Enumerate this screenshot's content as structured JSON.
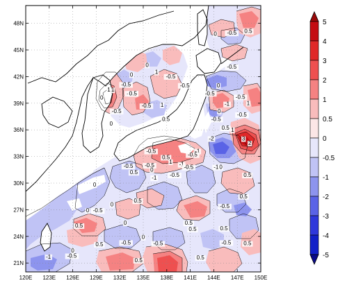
{
  "map": {
    "lon_ticks": [
      "120E",
      "123E",
      "126E",
      "129E",
      "132E",
      "135E",
      "138E",
      "141E",
      "144E",
      "147E",
      "150E"
    ],
    "lat_ticks": [
      "21N",
      "24N",
      "27N",
      "30N",
      "33N",
      "36N",
      "39N",
      "42N",
      "45N",
      "48N"
    ],
    "lon_range": [
      120,
      150
    ],
    "lat_range": [
      20,
      50
    ],
    "contour_labels": [
      {
        "text": "0.5",
        "lon": 148.4,
        "lat": 46.9
      },
      {
        "text": "-0.5",
        "lon": 146.3,
        "lat": 46.7
      },
      {
        "text": "0",
        "lon": 144.2,
        "lat": 46.6
      },
      {
        "text": "-0.5",
        "lon": 146.3,
        "lat": 42.9
      },
      {
        "text": "0",
        "lon": 144.6,
        "lat": 40.8
      },
      {
        "text": "-0.5",
        "lon": 143.5,
        "lat": 39.9
      },
      {
        "text": "-0.5",
        "lon": 147.4,
        "lat": 39.5
      },
      {
        "text": "-1",
        "lon": 145.7,
        "lat": 38.7
      },
      {
        "text": "1",
        "lon": 148.4,
        "lat": 38.8
      },
      {
        "text": "0",
        "lon": 144.7,
        "lat": 37.9
      },
      {
        "text": "-0.5",
        "lon": 147.6,
        "lat": 37.5
      },
      {
        "text": "-0.5",
        "lon": 144.3,
        "lat": 37.0
      },
      {
        "text": "0.5",
        "lon": 145.5,
        "lat": 36.0
      },
      {
        "text": "1",
        "lon": 146.4,
        "lat": 35.8
      },
      {
        "text": "-2",
        "lon": 143.7,
        "lat": 34.8
      },
      {
        "text": "3",
        "lon": 147.8,
        "lat": 34.8
      },
      {
        "text": "2",
        "lon": 148.6,
        "lat": 34.3
      },
      {
        "text": "-1",
        "lon": 141.9,
        "lat": 33.4
      },
      {
        "text": "-0.5",
        "lon": 141.3,
        "lat": 33.0
      },
      {
        "text": "-1",
        "lon": 144.3,
        "lat": 31.6
      },
      {
        "text": "0",
        "lon": 144.9,
        "lat": 31.6
      },
      {
        "text": "0.5",
        "lon": 148.3,
        "lat": 30.7
      },
      {
        "text": "0.5",
        "lon": 147.8,
        "lat": 28.3
      },
      {
        "text": "-0.5",
        "lon": 145.4,
        "lat": 27.2
      },
      {
        "text": "0.5",
        "lon": 145.3,
        "lat": 24.7
      },
      {
        "text": "-0.5",
        "lon": 145.6,
        "lat": 23.1
      },
      {
        "text": "0.5",
        "lon": 148.3,
        "lat": 23.0
      },
      {
        "text": "-0.5",
        "lon": 140.3,
        "lat": 40.8
      },
      {
        "text": "-0.5",
        "lon": 138.5,
        "lat": 41.8
      },
      {
        "text": "1",
        "lon": 136.7,
        "lat": 42.3
      },
      {
        "text": "0",
        "lon": 135.5,
        "lat": 43.1
      },
      {
        "text": "0",
        "lon": 133.5,
        "lat": 42.0
      },
      {
        "text": "-0.5",
        "lon": 132.8,
        "lat": 40.9
      },
      {
        "text": "-0.5",
        "lon": 133.5,
        "lat": 39.9
      },
      {
        "text": "1",
        "lon": 131.1,
        "lat": 40.3
      },
      {
        "text": "1",
        "lon": 130.6,
        "lat": 40.3
      },
      {
        "text": "0",
        "lon": 129.7,
        "lat": 39.4
      },
      {
        "text": "-0.5",
        "lon": 131.6,
        "lat": 37.9
      },
      {
        "text": "0.5",
        "lon": 133.7,
        "lat": 39.9
      },
      {
        "text": "1",
        "lon": 137.4,
        "lat": 38.6
      },
      {
        "text": "-0.5",
        "lon": 135.4,
        "lat": 38.5
      },
      {
        "text": "0",
        "lon": 130.9,
        "lat": 36.5
      },
      {
        "text": "0.5",
        "lon": 137.9,
        "lat": 37.0
      },
      {
        "text": "-0.5",
        "lon": 136.0,
        "lat": 33.4
      },
      {
        "text": "0.5",
        "lon": 137.9,
        "lat": 32.7
      },
      {
        "text": "1",
        "lon": 138.5,
        "lat": 32.2
      },
      {
        "text": "-1",
        "lon": 139.9,
        "lat": 31.9
      },
      {
        "text": "-0.5",
        "lon": 140.8,
        "lat": 31.6
      },
      {
        "text": "-0.5",
        "lon": 135.8,
        "lat": 31.8
      },
      {
        "text": "0",
        "lon": 136.1,
        "lat": 31.3
      },
      {
        "text": "-0.5",
        "lon": 133.1,
        "lat": 31.7
      },
      {
        "text": "0.5",
        "lon": 133.8,
        "lat": 31.0
      },
      {
        "text": "-1",
        "lon": 136.4,
        "lat": 30.4
      },
      {
        "text": "-0.5",
        "lon": 139.0,
        "lat": 30.7
      },
      {
        "text": "0",
        "lon": 128.8,
        "lat": 29.6
      },
      {
        "text": "0.5",
        "lon": 134.3,
        "lat": 27.8
      },
      {
        "text": "0",
        "lon": 131.0,
        "lat": 27.4
      },
      {
        "text": "-0.5",
        "lon": 129.2,
        "lat": 26.7
      },
      {
        "text": "0",
        "lon": 127.9,
        "lat": 26.7
      },
      {
        "text": "0.5",
        "lon": 140.8,
        "lat": 25.3
      },
      {
        "text": "0",
        "lon": 132.7,
        "lat": 25.3
      },
      {
        "text": "0.5",
        "lon": 126.8,
        "lat": 25.0
      },
      {
        "text": "0.5",
        "lon": 141.3,
        "lat": 24.6
      },
      {
        "text": "0",
        "lon": 135.0,
        "lat": 23.7
      },
      {
        "text": "-0.5",
        "lon": 136.9,
        "lat": 23.0
      },
      {
        "text": "-0.5",
        "lon": 132.8,
        "lat": 23.1
      },
      {
        "text": "0",
        "lon": 126.0,
        "lat": 22.2
      },
      {
        "text": "0.5",
        "lon": 129.4,
        "lat": 22.9
      },
      {
        "text": "-0.5",
        "lon": 125.9,
        "lat": 21.6
      },
      {
        "text": "-1",
        "lon": 122.9,
        "lat": 21.5
      },
      {
        "text": "0.5",
        "lon": 134.4,
        "lat": 21.1
      },
      {
        "text": "0.5",
        "lon": 142.3,
        "lat": 21.4
      }
    ]
  },
  "colorbar": {
    "labels": [
      "5",
      "4",
      "3",
      "2",
      "1",
      "0.5",
      "0",
      "-0.5",
      "-1",
      "-2",
      "-3",
      "-4",
      "-5"
    ],
    "colors": [
      "#9a0a0a",
      "#c40c12",
      "#e02828",
      "#ee5050",
      "#f58282",
      "#f9bcbc",
      "#fce6e6",
      "#e6e6fb",
      "#c0c3f5",
      "#8d94ee",
      "#5a63e6",
      "#2f38db",
      "#1220c8",
      "#0a0a8a"
    ]
  }
}
